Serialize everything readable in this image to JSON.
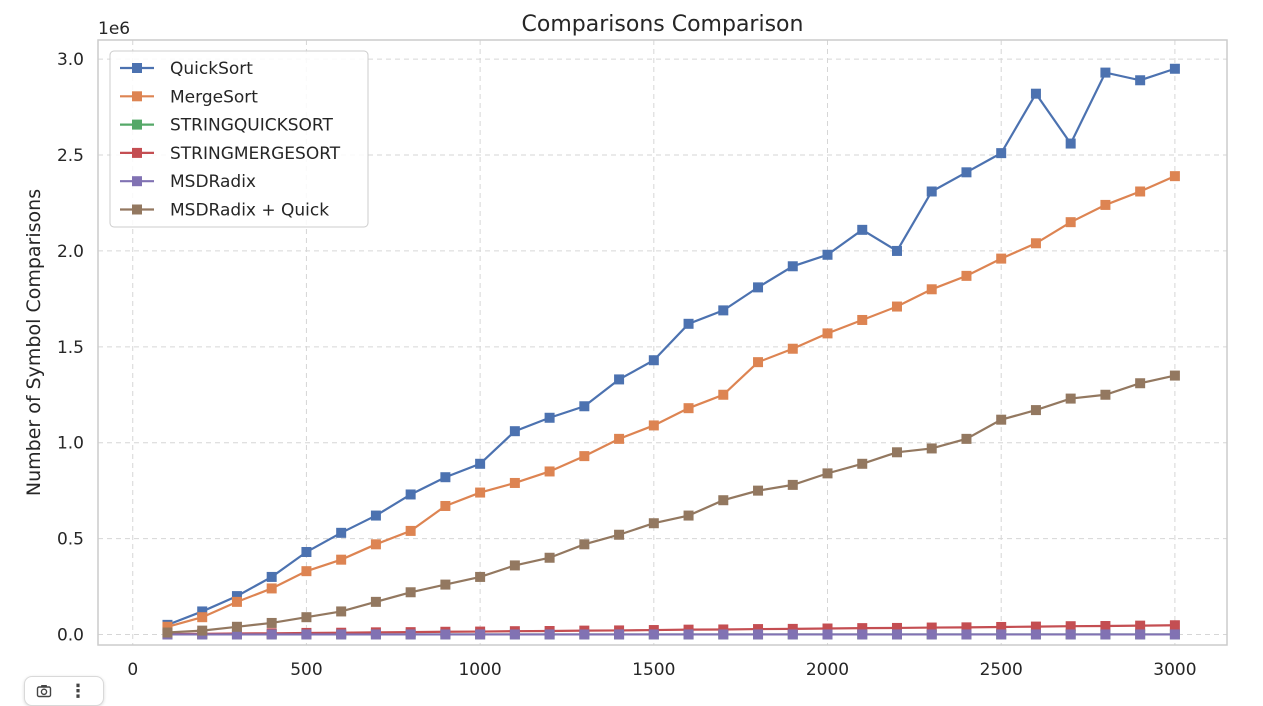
{
  "chart_data": {
    "type": "line",
    "title": "Comparisons Comparison",
    "xlabel": "",
    "ylabel": "Number of Symbol Comparisons",
    "y_multiplier_label": "1e6",
    "xlim": [
      -100,
      3150
    ],
    "ylim": [
      -0.055,
      3.1
    ],
    "x_ticks": [
      0,
      500,
      1000,
      1500,
      2000,
      2500,
      3000
    ],
    "x_tick_labels": [
      "0",
      "500",
      "1000",
      "1500",
      "2000",
      "2500",
      "3000"
    ],
    "y_ticks": [
      0.0,
      0.5,
      1.0,
      1.5,
      2.0,
      2.5,
      3.0
    ],
    "y_tick_labels": [
      "0.0",
      "0.5",
      "1.0",
      "1.5",
      "2.0",
      "2.5",
      "3.0"
    ],
    "grid": true,
    "legend_position": "top-left",
    "marker": "square",
    "x": [
      100,
      200,
      300,
      400,
      500,
      600,
      700,
      800,
      900,
      1000,
      1100,
      1200,
      1300,
      1400,
      1500,
      1600,
      1700,
      1800,
      1900,
      2000,
      2100,
      2200,
      2300,
      2400,
      2500,
      2600,
      2700,
      2800,
      2900,
      3000
    ],
    "series": [
      {
        "name": "QuickSort",
        "color": "#4c72b0",
        "values": [
          0.05,
          0.12,
          0.2,
          0.3,
          0.43,
          0.53,
          0.62,
          0.73,
          0.82,
          0.89,
          1.06,
          1.13,
          1.19,
          1.33,
          1.43,
          1.62,
          1.69,
          1.81,
          1.92,
          1.98,
          2.11,
          2.0,
          2.31,
          2.41,
          2.51,
          2.82,
          2.56,
          2.93,
          2.89,
          2.95
        ]
      },
      {
        "name": "MergeSort",
        "color": "#dd8452",
        "values": [
          0.04,
          0.09,
          0.17,
          0.24,
          0.33,
          0.39,
          0.47,
          0.54,
          0.67,
          0.74,
          0.79,
          0.85,
          0.93,
          1.02,
          1.09,
          1.18,
          1.25,
          1.42,
          1.49,
          1.57,
          1.64,
          1.71,
          1.8,
          1.87,
          1.96,
          2.04,
          2.15,
          2.24,
          2.31,
          2.39
        ]
      },
      {
        "name": "STRINGQUICKSORT",
        "color": "#55a868",
        "values": [
          0.0,
          0.0,
          0.0,
          0.0,
          0.0,
          0.0,
          0.0,
          0.0,
          0.0,
          0.0,
          0.0,
          0.0,
          0.0,
          0.0,
          0.0,
          0.0,
          0.0,
          0.0,
          0.0,
          0.0,
          0.0,
          0.0,
          0.0,
          0.0,
          0.0,
          0.0,
          0.0,
          0.0,
          0.0,
          0.0
        ]
      },
      {
        "name": "STRINGMERGESORT",
        "color": "#c44e52",
        "values": [
          0.002,
          0.003,
          0.005,
          0.006,
          0.008,
          0.009,
          0.011,
          0.012,
          0.014,
          0.015,
          0.017,
          0.018,
          0.02,
          0.021,
          0.023,
          0.025,
          0.026,
          0.028,
          0.029,
          0.031,
          0.033,
          0.034,
          0.036,
          0.037,
          0.039,
          0.041,
          0.043,
          0.044,
          0.046,
          0.048
        ]
      },
      {
        "name": "MSDRadix",
        "color": "#8172b3",
        "values": [
          0.0,
          0.0,
          0.0,
          0.0,
          0.0,
          0.0,
          0.0,
          0.0,
          0.0,
          0.0,
          0.0,
          0.0,
          0.0,
          0.0,
          0.0,
          0.0,
          0.0,
          0.0,
          0.0,
          0.0,
          0.0,
          0.0,
          0.0,
          0.0,
          0.0,
          0.0,
          0.0,
          0.0,
          0.0,
          0.0
        ]
      },
      {
        "name": "MSDRadix + Quick",
        "color": "#937860",
        "values": [
          0.01,
          0.02,
          0.04,
          0.06,
          0.09,
          0.12,
          0.17,
          0.22,
          0.26,
          0.3,
          0.36,
          0.4,
          0.47,
          0.52,
          0.58,
          0.62,
          0.7,
          0.75,
          0.78,
          0.84,
          0.89,
          0.95,
          0.97,
          1.02,
          1.12,
          1.17,
          1.23,
          1.25,
          1.31,
          1.35
        ]
      }
    ]
  },
  "toolbar": {
    "camera_icon": "camera-icon",
    "more_icon": "more-vertical-icon",
    "more_glyph": "⋮"
  },
  "partial_text": {
    "xlabel_fragment": "·   ·"
  }
}
